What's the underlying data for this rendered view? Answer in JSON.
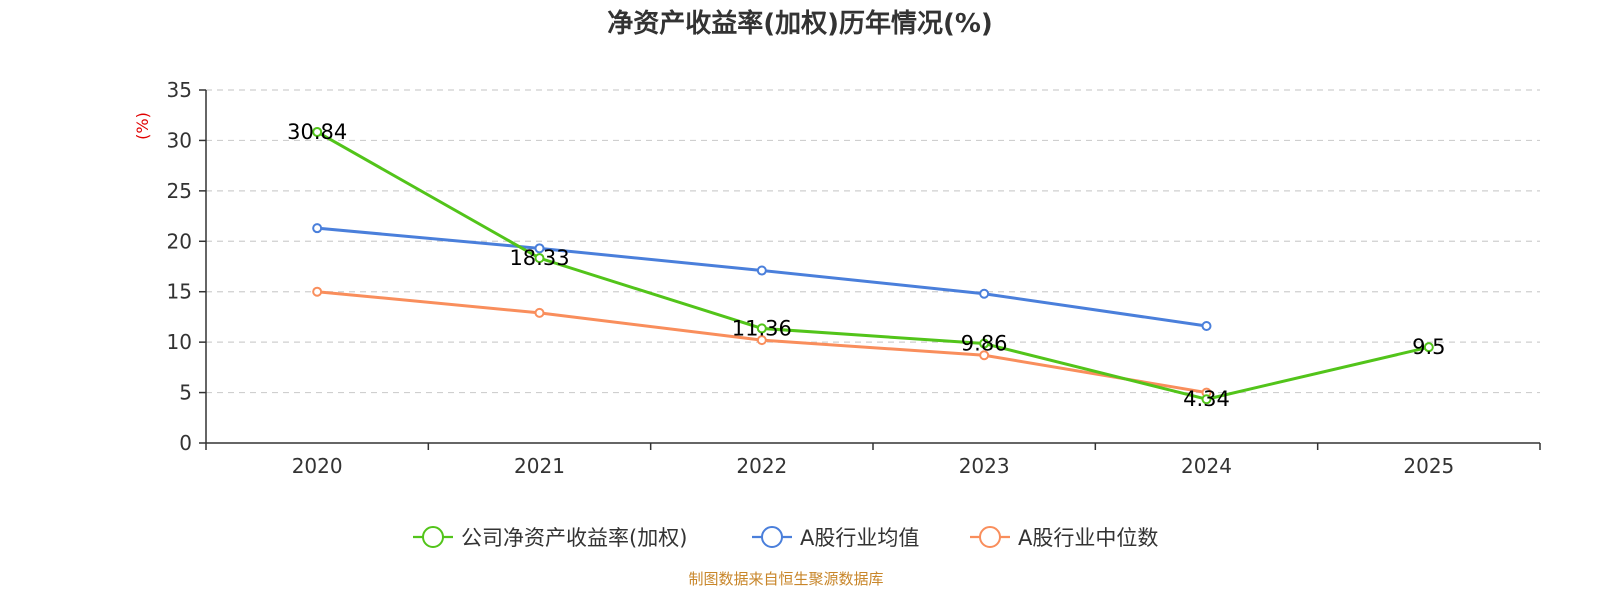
{
  "chart_data": {
    "type": "line",
    "title": "净资产收益率(加权)历年情况(%)",
    "ylabel": "(%)",
    "xlabel": "",
    "categories": [
      "2020",
      "2021",
      "2022",
      "2023",
      "2024",
      "2025"
    ],
    "ylim": [
      0,
      35
    ],
    "yticks": [
      "0",
      "5",
      "10",
      "15",
      "20",
      "25",
      "30",
      "35"
    ],
    "grid": true,
    "legend_position": "bottom-center",
    "series": [
      {
        "name": "公司净资产收益率(加权)",
        "color": "#52c41a",
        "values": [
          30.84,
          18.33,
          11.36,
          9.86,
          4.34,
          9.5
        ],
        "labels": [
          "30.84",
          "18.33",
          "11.36",
          "9.86",
          "4.34",
          "9.5"
        ]
      },
      {
        "name": "A股行业均值",
        "color": "#4a7fdb",
        "values": [
          21.3,
          19.3,
          17.1,
          14.8,
          11.6,
          null
        ]
      },
      {
        "name": "A股行业中位数",
        "color": "#f98e5c",
        "values": [
          15.0,
          12.9,
          10.2,
          8.7,
          5.0,
          null
        ]
      }
    ],
    "ylabel_color": "#e00000"
  },
  "source": {
    "text": "制图数据来自恒生聚源数据库",
    "color": "#c8862a"
  }
}
